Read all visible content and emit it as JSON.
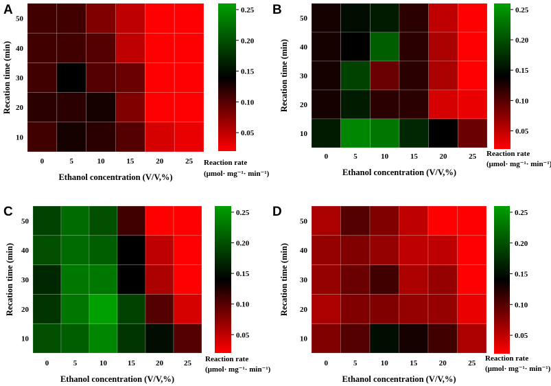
{
  "colors": {
    "low": "#ff0000",
    "mid": "#000000",
    "high": "#00a000"
  },
  "chart_data": [
    {
      "type": "heatmap",
      "panel": "A",
      "xlabel": "Ethanol concentration (V/V,%)",
      "ylabel": "Recation time (min)",
      "x_ticks": [
        "0",
        "5",
        "10",
        "15",
        "20",
        "25"
      ],
      "y_ticks": [
        "50",
        "40",
        "30",
        "20",
        "10"
      ],
      "legend_title_1": "Reaction rate",
      "legend_title_2": "(μmol· mg⁻¹· min⁻¹)",
      "legend_ticks": [
        "0.25",
        "0.20",
        "0.15",
        "0.10",
        "0.05"
      ],
      "legend_values": [
        0.25,
        0.2,
        0.15,
        0.1,
        0.05
      ],
      "zlim": [
        0.02,
        0.26
      ],
      "rows": [
        [
          0.11,
          0.11,
          0.08,
          0.05,
          0.02,
          0.02
        ],
        [
          0.11,
          0.11,
          0.1,
          0.05,
          0.02,
          0.02
        ],
        [
          0.11,
          0.14,
          0.1,
          0.09,
          0.02,
          0.02
        ],
        [
          0.12,
          0.12,
          0.13,
          0.08,
          0.02,
          0.02
        ],
        [
          0.11,
          0.13,
          0.12,
          0.1,
          0.04,
          0.03
        ]
      ]
    },
    {
      "type": "heatmap",
      "panel": "B",
      "xlabel": "Ethanol concentration (V/V,%)",
      "ylabel": "Recation time (min)",
      "x_ticks": [
        "0",
        "5",
        "10",
        "15",
        "20",
        "25"
      ],
      "y_ticks": [
        "50",
        "40",
        "30",
        "20",
        "10"
      ],
      "legend_title_1": "Reaction rate",
      "legend_title_2": "(μmol· mg⁻¹· min⁻¹)",
      "legend_ticks": [
        "0.25",
        "0.20",
        "0.15",
        "0.10",
        "0.05"
      ],
      "legend_values": [
        0.25,
        0.2,
        0.15,
        0.1,
        0.05
      ],
      "zlim": [
        0.02,
        0.26
      ],
      "rows": [
        [
          0.13,
          0.15,
          0.16,
          0.12,
          0.05,
          0.02
        ],
        [
          0.13,
          0.14,
          0.21,
          0.12,
          0.06,
          0.02
        ],
        [
          0.13,
          0.19,
          0.09,
          0.12,
          0.06,
          0.02
        ],
        [
          0.13,
          0.16,
          0.12,
          0.12,
          0.04,
          0.03
        ],
        [
          0.16,
          0.24,
          0.23,
          0.17,
          0.14,
          0.09
        ]
      ]
    },
    {
      "type": "heatmap",
      "panel": "C",
      "xlabel": "Ethanol concentration (V/V,%)",
      "ylabel": "Recation time (min)",
      "x_ticks": [
        "0",
        "5",
        "10",
        "15",
        "20",
        "25"
      ],
      "y_ticks": [
        "50",
        "40",
        "30",
        "20",
        "10"
      ],
      "legend_title_1": "Reaction rate",
      "legend_title_2": "(μmol· mg⁻¹· min⁻¹)",
      "legend_ticks": [
        "0.25",
        "0.20",
        "0.15",
        "0.10",
        "0.05"
      ],
      "legend_values": [
        0.25,
        0.2,
        0.15,
        0.1,
        0.05
      ],
      "zlim": [
        0.02,
        0.26
      ],
      "rows": [
        [
          0.19,
          0.22,
          0.2,
          0.11,
          0.02,
          0.02
        ],
        [
          0.2,
          0.22,
          0.21,
          0.14,
          0.05,
          0.02
        ],
        [
          0.17,
          0.23,
          0.23,
          0.14,
          0.06,
          0.02
        ],
        [
          0.18,
          0.23,
          0.26,
          0.19,
          0.1,
          0.04
        ],
        [
          0.2,
          0.21,
          0.24,
          0.18,
          0.15,
          0.1
        ]
      ]
    },
    {
      "type": "heatmap",
      "panel": "D",
      "xlabel": "Ethanol concentration (V/V,%)",
      "ylabel": "Recation time (min)",
      "x_ticks": [
        "0",
        "5",
        "10",
        "15",
        "20",
        "25"
      ],
      "y_ticks": [
        "50",
        "40",
        "30",
        "20",
        "10"
      ],
      "legend_title_1": "Reaction rate",
      "legend_title_2": "(μmol· mg⁻¹· min⁻¹)",
      "legend_ticks": [
        "0.25",
        "0.20",
        "0.15",
        "0.10",
        "0.05"
      ],
      "legend_values": [
        0.25,
        0.2,
        0.15,
        0.1,
        0.05
      ],
      "zlim": [
        0.02,
        0.26
      ],
      "rows": [
        [
          0.06,
          0.1,
          0.08,
          0.05,
          0.02,
          0.02
        ],
        [
          0.07,
          0.08,
          0.07,
          0.05,
          0.05,
          0.02
        ],
        [
          0.07,
          0.09,
          0.11,
          0.06,
          0.07,
          0.02
        ],
        [
          0.06,
          0.08,
          0.08,
          0.07,
          0.07,
          0.03
        ],
        [
          0.08,
          0.1,
          0.15,
          0.13,
          0.11,
          0.06
        ]
      ]
    }
  ]
}
